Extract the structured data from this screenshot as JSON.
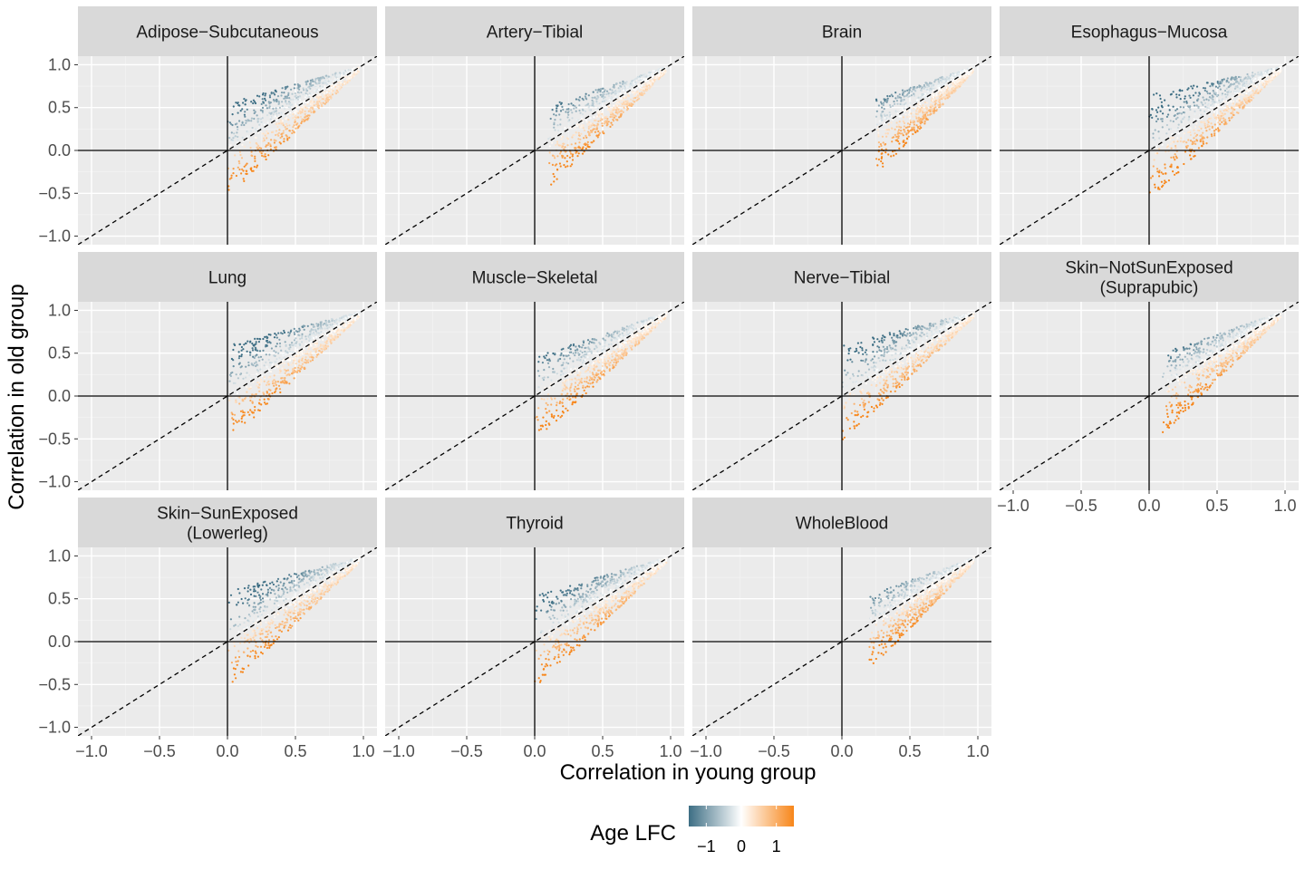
{
  "chart_data": {
    "type": "scatter",
    "facets": [
      {
        "label": [
          "Adipose−Subcutaneous"
        ]
      },
      {
        "label": [
          "Artery−Tibial"
        ]
      },
      {
        "label": [
          "Brain"
        ]
      },
      {
        "label": [
          "Esophagus−Mucosa"
        ]
      },
      {
        "label": [
          "Lung"
        ]
      },
      {
        "label": [
          "Muscle−Skeletal"
        ]
      },
      {
        "label": [
          "Nerve−Tibial"
        ]
      },
      {
        "label": [
          "Skin−NotSunExposed",
          "(Suprapubic)"
        ]
      },
      {
        "label": [
          "Skin−SunExposed",
          "(Lowerleg)"
        ]
      },
      {
        "label": [
          "Thyroid"
        ]
      },
      {
        "label": [
          "WholeBlood"
        ]
      }
    ],
    "cloud_profiles": [
      {
        "xmin": 0.0,
        "upper_at_min": 0.55,
        "lower_frac": 0.55
      },
      {
        "xmin": 0.1,
        "upper_at_min": 0.52,
        "lower_frac": 0.55
      },
      {
        "xmin": 0.25,
        "upper_at_min": 0.6,
        "lower_frac": 0.55
      },
      {
        "xmin": 0.0,
        "upper_at_min": 0.65,
        "lower_frac": 0.6
      },
      {
        "xmin": 0.0,
        "upper_at_min": 0.6,
        "lower_frac": 0.55
      },
      {
        "xmin": 0.0,
        "upper_at_min": 0.45,
        "lower_frac": 0.55
      },
      {
        "xmin": 0.0,
        "upper_at_min": 0.6,
        "lower_frac": 0.55
      },
      {
        "xmin": 0.1,
        "upper_at_min": 0.5,
        "lower_frac": 0.55
      },
      {
        "xmin": 0.0,
        "upper_at_min": 0.6,
        "lower_frac": 0.55
      },
      {
        "xmin": 0.0,
        "upper_at_min": 0.55,
        "lower_frac": 0.55
      },
      {
        "xmin": 0.2,
        "upper_at_min": 0.55,
        "lower_frac": 0.55
      }
    ],
    "xlabel": "Correlation in young group",
    "ylabel": "Correlation in old group",
    "xlim": [
      -1.1,
      1.1
    ],
    "ylim": [
      -1.1,
      1.1
    ],
    "x_ticks": [
      -1.0,
      -0.5,
      0.0,
      0.5,
      1.0
    ],
    "y_ticks": [
      -1.0,
      -0.5,
      0.0,
      0.5,
      1.0
    ],
    "x_tick_labels": [
      "−1.0",
      "−0.5",
      "0.0",
      "0.5",
      "1.0"
    ],
    "y_tick_labels": [
      "−1.0",
      "−0.5",
      "0.0",
      "0.5",
      "1.0"
    ],
    "reference_lines": [
      "y = x (dashed)",
      "x = 0",
      "y = 0"
    ],
    "legend": {
      "title": "Age LFC",
      "position": "bottom",
      "ticks": [
        -1,
        0,
        1
      ],
      "tick_labels": [
        "−1",
        "0",
        "1"
      ],
      "range": [
        -1.5,
        1.5
      ],
      "colors": {
        "low": "#3d6e84",
        "mid": "#ffffff",
        "high": "#f7861a"
      }
    },
    "colors": {
      "panel_bg": "#ebebeb",
      "strip_bg": "#d9d9d9",
      "grid_major": "#ffffff",
      "grid_minor": "#f3f3f3"
    }
  }
}
